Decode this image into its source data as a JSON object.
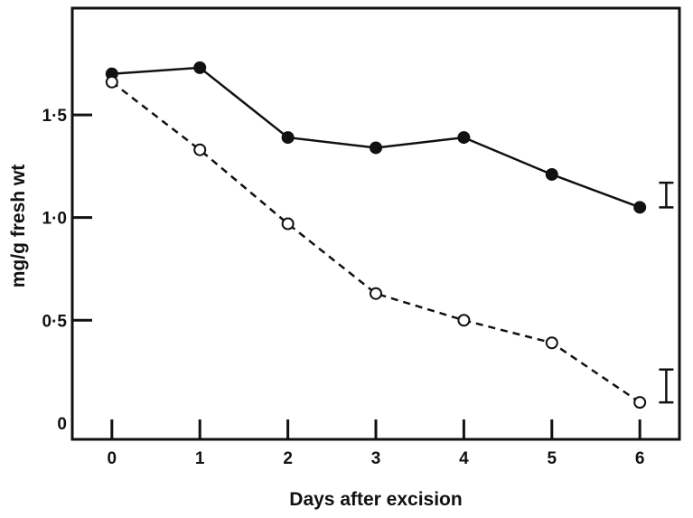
{
  "chart_data": {
    "type": "line",
    "title": "",
    "xlabel": "Days after excision",
    "ylabel": "mg/g fresh wt",
    "x": [
      0,
      1,
      2,
      3,
      4,
      5,
      6
    ],
    "x_tick_labels": [
      "0",
      "1",
      "2",
      "3",
      "4",
      "5",
      "6"
    ],
    "y_tick_labels": [
      "0",
      "0·5",
      "1·0",
      "1·5"
    ],
    "y_ticks": [
      0,
      0.5,
      1.0,
      1.5
    ],
    "xlim": [
      -0.45,
      6.45
    ],
    "ylim": [
      -0.08,
      2.02
    ],
    "grid": false,
    "legend": "none",
    "series": [
      {
        "style": "solid",
        "marker": "filled-circle",
        "values": [
          1.7,
          1.73,
          1.39,
          1.34,
          1.39,
          1.21,
          1.05
        ]
      },
      {
        "style": "dashed",
        "marker": "open-circle",
        "values": [
          1.66,
          1.33,
          0.97,
          0.63,
          0.5,
          0.39,
          0.1
        ]
      }
    ],
    "error_bars": [
      {
        "x": 6.3,
        "low": 1.05,
        "high": 1.17
      },
      {
        "x": 6.3,
        "low": 0.1,
        "high": 0.26
      }
    ],
    "colors": {
      "line": "#111111",
      "background": "#ffffff"
    }
  }
}
